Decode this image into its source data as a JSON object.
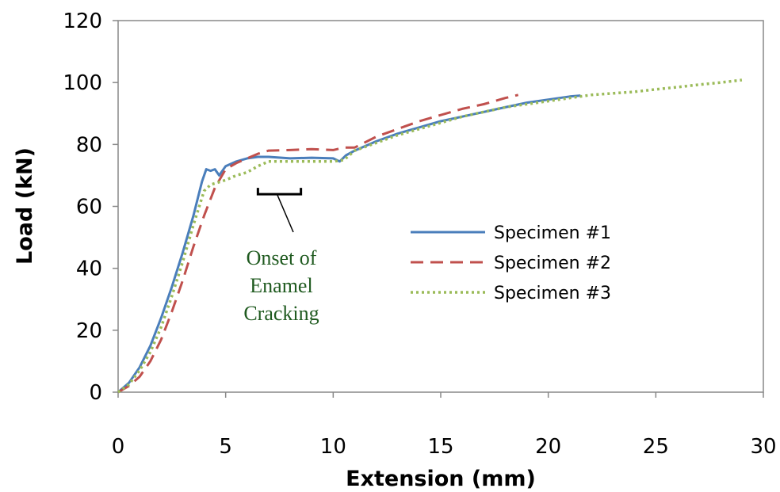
{
  "chart_data": {
    "type": "line",
    "xlabel": "Extension (mm)",
    "ylabel": "Load (kN)",
    "xlim": [
      0,
      30
    ],
    "ylim": [
      0,
      120
    ],
    "x_ticks": [
      "0",
      "5",
      "10",
      "15",
      "20",
      "25",
      "30"
    ],
    "y_ticks": [
      "0",
      "20",
      "40",
      "60",
      "80",
      "100",
      "120"
    ],
    "grid": false,
    "legend_position": "right-center",
    "series": [
      {
        "name": "Specimen #1",
        "color": "#4a7ebb",
        "style": "solid",
        "points": [
          [
            0,
            0
          ],
          [
            0.5,
            3
          ],
          [
            1,
            8
          ],
          [
            1.5,
            15
          ],
          [
            2,
            24
          ],
          [
            2.5,
            34
          ],
          [
            3,
            45
          ],
          [
            3.5,
            57
          ],
          [
            3.9,
            68
          ],
          [
            4.1,
            72
          ],
          [
            4.3,
            71.5
          ],
          [
            4.5,
            72
          ],
          [
            4.7,
            70
          ],
          [
            5,
            73
          ],
          [
            5.5,
            74.5
          ],
          [
            6,
            75.5
          ],
          [
            6.5,
            76
          ],
          [
            7,
            76
          ],
          [
            8,
            75.5
          ],
          [
            9,
            75.7
          ],
          [
            10,
            75.5
          ],
          [
            10.3,
            74.5
          ],
          [
            10.6,
            76.5
          ],
          [
            11,
            78
          ],
          [
            12,
            81
          ],
          [
            13,
            83.5
          ],
          [
            14,
            85.5
          ],
          [
            15,
            87.5
          ],
          [
            16,
            89
          ],
          [
            17,
            90.5
          ],
          [
            18,
            92
          ],
          [
            19,
            93.5
          ],
          [
            20,
            94.5
          ],
          [
            21,
            95.5
          ],
          [
            21.5,
            95.8
          ]
        ]
      },
      {
        "name": "Specimen #2",
        "color": "#c0504d",
        "style": "dashed",
        "points": [
          [
            0,
            0
          ],
          [
            0.5,
            2
          ],
          [
            1,
            5
          ],
          [
            1.5,
            10
          ],
          [
            2,
            17
          ],
          [
            2.5,
            26
          ],
          [
            3,
            36
          ],
          [
            3.5,
            47
          ],
          [
            4,
            57
          ],
          [
            4.5,
            66
          ],
          [
            5,
            72
          ],
          [
            5.5,
            74
          ],
          [
            6,
            75.5
          ],
          [
            6.5,
            77
          ],
          [
            7,
            78
          ],
          [
            8,
            78.2
          ],
          [
            9,
            78.5
          ],
          [
            10,
            78.2
          ],
          [
            10.5,
            79
          ],
          [
            11,
            79
          ],
          [
            12,
            82.5
          ],
          [
            13,
            85
          ],
          [
            14,
            87.5
          ],
          [
            15,
            89.5
          ],
          [
            16,
            91.5
          ],
          [
            17,
            93
          ],
          [
            18,
            95
          ],
          [
            18.6,
            96
          ]
        ]
      },
      {
        "name": "Specimen #3",
        "color": "#9bbb59",
        "style": "dotted",
        "points": [
          [
            0,
            0
          ],
          [
            0.5,
            2.5
          ],
          [
            1,
            7
          ],
          [
            1.5,
            13
          ],
          [
            2,
            21
          ],
          [
            2.5,
            31
          ],
          [
            3,
            42
          ],
          [
            3.5,
            54
          ],
          [
            4,
            65
          ],
          [
            4.3,
            67
          ],
          [
            5,
            68.5
          ],
          [
            5.5,
            70
          ],
          [
            6,
            71
          ],
          [
            6.5,
            73
          ],
          [
            7,
            74.5
          ],
          [
            8,
            74.5
          ],
          [
            9,
            74.5
          ],
          [
            10,
            74.5
          ],
          [
            10.5,
            75
          ],
          [
            11,
            78
          ],
          [
            12,
            80.5
          ],
          [
            13,
            83
          ],
          [
            14,
            85
          ],
          [
            15,
            87
          ],
          [
            16,
            89
          ],
          [
            17,
            90.5
          ],
          [
            18,
            92
          ],
          [
            19,
            93
          ],
          [
            20,
            94
          ],
          [
            21,
            95
          ],
          [
            22,
            96
          ],
          [
            23,
            96.5
          ],
          [
            24,
            97
          ],
          [
            25,
            97.8
          ],
          [
            26,
            98.5
          ],
          [
            27,
            99.3
          ],
          [
            28,
            100
          ],
          [
            29,
            100.8
          ]
        ]
      }
    ],
    "annotation": {
      "lines": [
        "Onset of",
        "Enamel",
        "Cracking"
      ],
      "bracket_x_range": [
        6.5,
        8.5
      ],
      "bracket_y": 66.5
    }
  }
}
